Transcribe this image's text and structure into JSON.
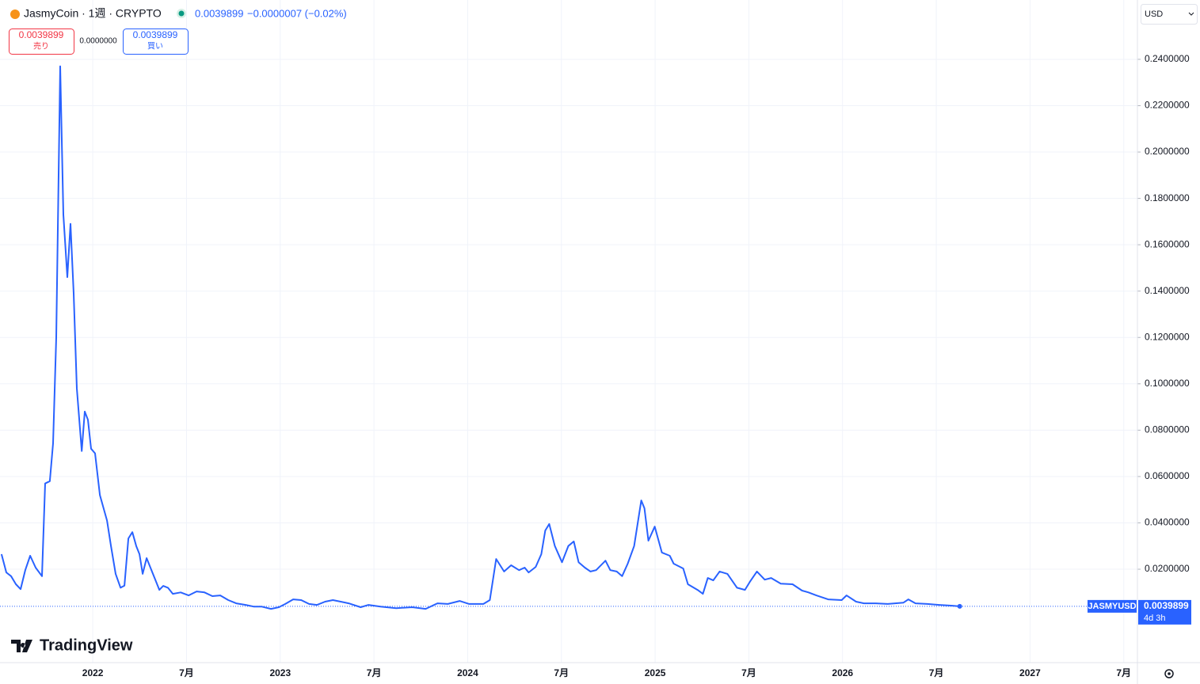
{
  "header": {
    "symbol": "JasmyCoin · 1週 · CRYPTO",
    "price": "0.0039899",
    "change": "−0.0000007 (−0.02%)"
  },
  "trade": {
    "sell_price": "0.0039899",
    "sell_label": "売り",
    "spread": "0.0000000",
    "buy_price": "0.0039899",
    "buy_label": "買い"
  },
  "currency": "USD",
  "brand": "TradingView",
  "chart_data": {
    "type": "line",
    "x": [
      2021.513,
      2021.539,
      2021.564,
      2021.59,
      2021.615,
      2021.64,
      2021.666,
      2021.695,
      2021.729,
      2021.746,
      2021.771,
      2021.788,
      2021.805,
      2021.826,
      2021.843,
      2021.864,
      2021.881,
      2021.898,
      2021.915,
      2021.941,
      2021.957,
      2021.974,
      2021.991,
      2022.012,
      2022.038,
      2022.055,
      2022.076,
      2022.097,
      2022.122,
      2022.148,
      2022.169,
      2022.19,
      2022.211,
      2022.232,
      2022.249,
      2022.266,
      2022.287,
      2022.33,
      2022.355,
      2022.376,
      2022.401,
      2022.427,
      2022.469,
      2022.511,
      2022.554,
      2022.596,
      2022.638,
      2022.68,
      2022.723,
      2022.765,
      2022.816,
      2022.858,
      2022.9,
      2022.951,
      2022.993,
      2023.027,
      2023.069,
      2023.112,
      2023.154,
      2023.196,
      2023.239,
      2023.281,
      2023.323,
      2023.365,
      2023.429,
      2023.471,
      2023.535,
      2023.619,
      2023.704,
      2023.776,
      2023.839,
      2023.894,
      2023.957,
      2024.008,
      2024.084,
      2024.118,
      2024.152,
      2024.194,
      2024.232,
      2024.274,
      2024.304,
      2024.325,
      2024.363,
      2024.393,
      2024.414,
      2024.435,
      2024.465,
      2024.503,
      2024.537,
      2024.566,
      2024.592,
      2024.625,
      2024.655,
      2024.685,
      2024.735,
      2024.761,
      2024.795,
      2024.824,
      2024.854,
      2024.888,
      2024.926,
      2024.943,
      2024.964,
      2024.998,
      2025.036,
      2025.078,
      2025.099,
      2025.15,
      2025.175,
      2025.226,
      2025.255,
      2025.281,
      2025.31,
      2025.344,
      2025.386,
      2025.437,
      2025.479,
      2025.505,
      2025.543,
      2025.585,
      2025.619,
      2025.67,
      2025.733,
      2025.784,
      2025.818,
      2025.86,
      2025.923,
      2025.995,
      2026.021,
      2026.072,
      2026.114,
      2026.177,
      2026.241,
      2026.325,
      2026.351,
      2026.389,
      2026.452,
      2026.516,
      2026.579,
      2026.625
    ],
    "series": [
      {
        "name": "JASMYUSD",
        "color": "#2962ff",
        "values": [
          0.0265,
          0.0186,
          0.017,
          0.0135,
          0.0114,
          0.0196,
          0.0258,
          0.0207,
          0.017,
          0.057,
          0.058,
          0.0743,
          0.12,
          0.237,
          0.173,
          0.146,
          0.169,
          0.139,
          0.098,
          0.071,
          0.088,
          0.0845,
          0.072,
          0.07,
          0.052,
          0.047,
          0.041,
          0.03,
          0.018,
          0.012,
          0.0129,
          0.0333,
          0.036,
          0.03,
          0.0265,
          0.018,
          0.0248,
          0.0162,
          0.0111,
          0.0128,
          0.012,
          0.0094,
          0.01,
          0.0087,
          0.0104,
          0.01,
          0.0084,
          0.0087,
          0.0067,
          0.0053,
          0.0046,
          0.0039,
          0.0039,
          0.0029,
          0.0036,
          0.005,
          0.007,
          0.0067,
          0.005,
          0.0046,
          0.006,
          0.0067,
          0.006,
          0.0053,
          0.0036,
          0.0046,
          0.0039,
          0.0032,
          0.0036,
          0.0029,
          0.0053,
          0.005,
          0.0063,
          0.005,
          0.005,
          0.0067,
          0.0244,
          0.019,
          0.0217,
          0.0196,
          0.0207,
          0.0186,
          0.021,
          0.0265,
          0.0367,
          0.0395,
          0.03,
          0.023,
          0.03,
          0.032,
          0.023,
          0.0207,
          0.019,
          0.0196,
          0.0237,
          0.0196,
          0.019,
          0.017,
          0.0224,
          0.03,
          0.0497,
          0.0463,
          0.0323,
          0.0384,
          0.0272,
          0.0258,
          0.0224,
          0.0203,
          0.0135,
          0.0111,
          0.0094,
          0.0162,
          0.0152,
          0.019,
          0.018,
          0.012,
          0.0111,
          0.0145,
          0.019,
          0.0155,
          0.0162,
          0.0138,
          0.0135,
          0.0108,
          0.01,
          0.0087,
          0.007,
          0.0067,
          0.0087,
          0.006,
          0.0053,
          0.0053,
          0.005,
          0.0056,
          0.007,
          0.0053,
          0.005,
          0.0046,
          0.0043,
          0.0039899
        ]
      }
    ],
    "xlim": [
      2021.505,
      2027.573
    ],
    "xticks": [
      {
        "value": 2022,
        "label": "2022"
      },
      {
        "value": 2022.5,
        "label": "7月"
      },
      {
        "value": 2023,
        "label": "2023"
      },
      {
        "value": 2023.5,
        "label": "7月"
      },
      {
        "value": 2024,
        "label": "2024"
      },
      {
        "value": 2024.5,
        "label": "7月"
      },
      {
        "value": 2025,
        "label": "2025"
      },
      {
        "value": 2025.5,
        "label": "7月"
      },
      {
        "value": 2026,
        "label": "2026"
      },
      {
        "value": 2026.5,
        "label": "7月"
      },
      {
        "value": 2027,
        "label": "2027"
      },
      {
        "value": 2027.5,
        "label": "7月"
      }
    ],
    "ylim": [
      -0.0203,
      0.2656
    ],
    "yticks": [
      {
        "value": 0.02,
        "label": "0.0200000"
      },
      {
        "value": 0.04,
        "label": "0.0400000"
      },
      {
        "value": 0.06,
        "label": "0.0600000"
      },
      {
        "value": 0.08,
        "label": "0.0800000"
      },
      {
        "value": 0.1,
        "label": "0.1000000"
      },
      {
        "value": 0.12,
        "label": "0.1200000"
      },
      {
        "value": 0.14,
        "label": "0.1400000"
      },
      {
        "value": 0.16,
        "label": "0.1600000"
      },
      {
        "value": 0.18,
        "label": "0.1800000"
      },
      {
        "value": 0.2,
        "label": "0.2000000"
      },
      {
        "value": 0.22,
        "label": "0.2200000"
      },
      {
        "value": 0.24,
        "label": "0.2400000"
      }
    ],
    "grid": true,
    "last_price_label": "0.0039899",
    "countdown": "4d 3h"
  }
}
